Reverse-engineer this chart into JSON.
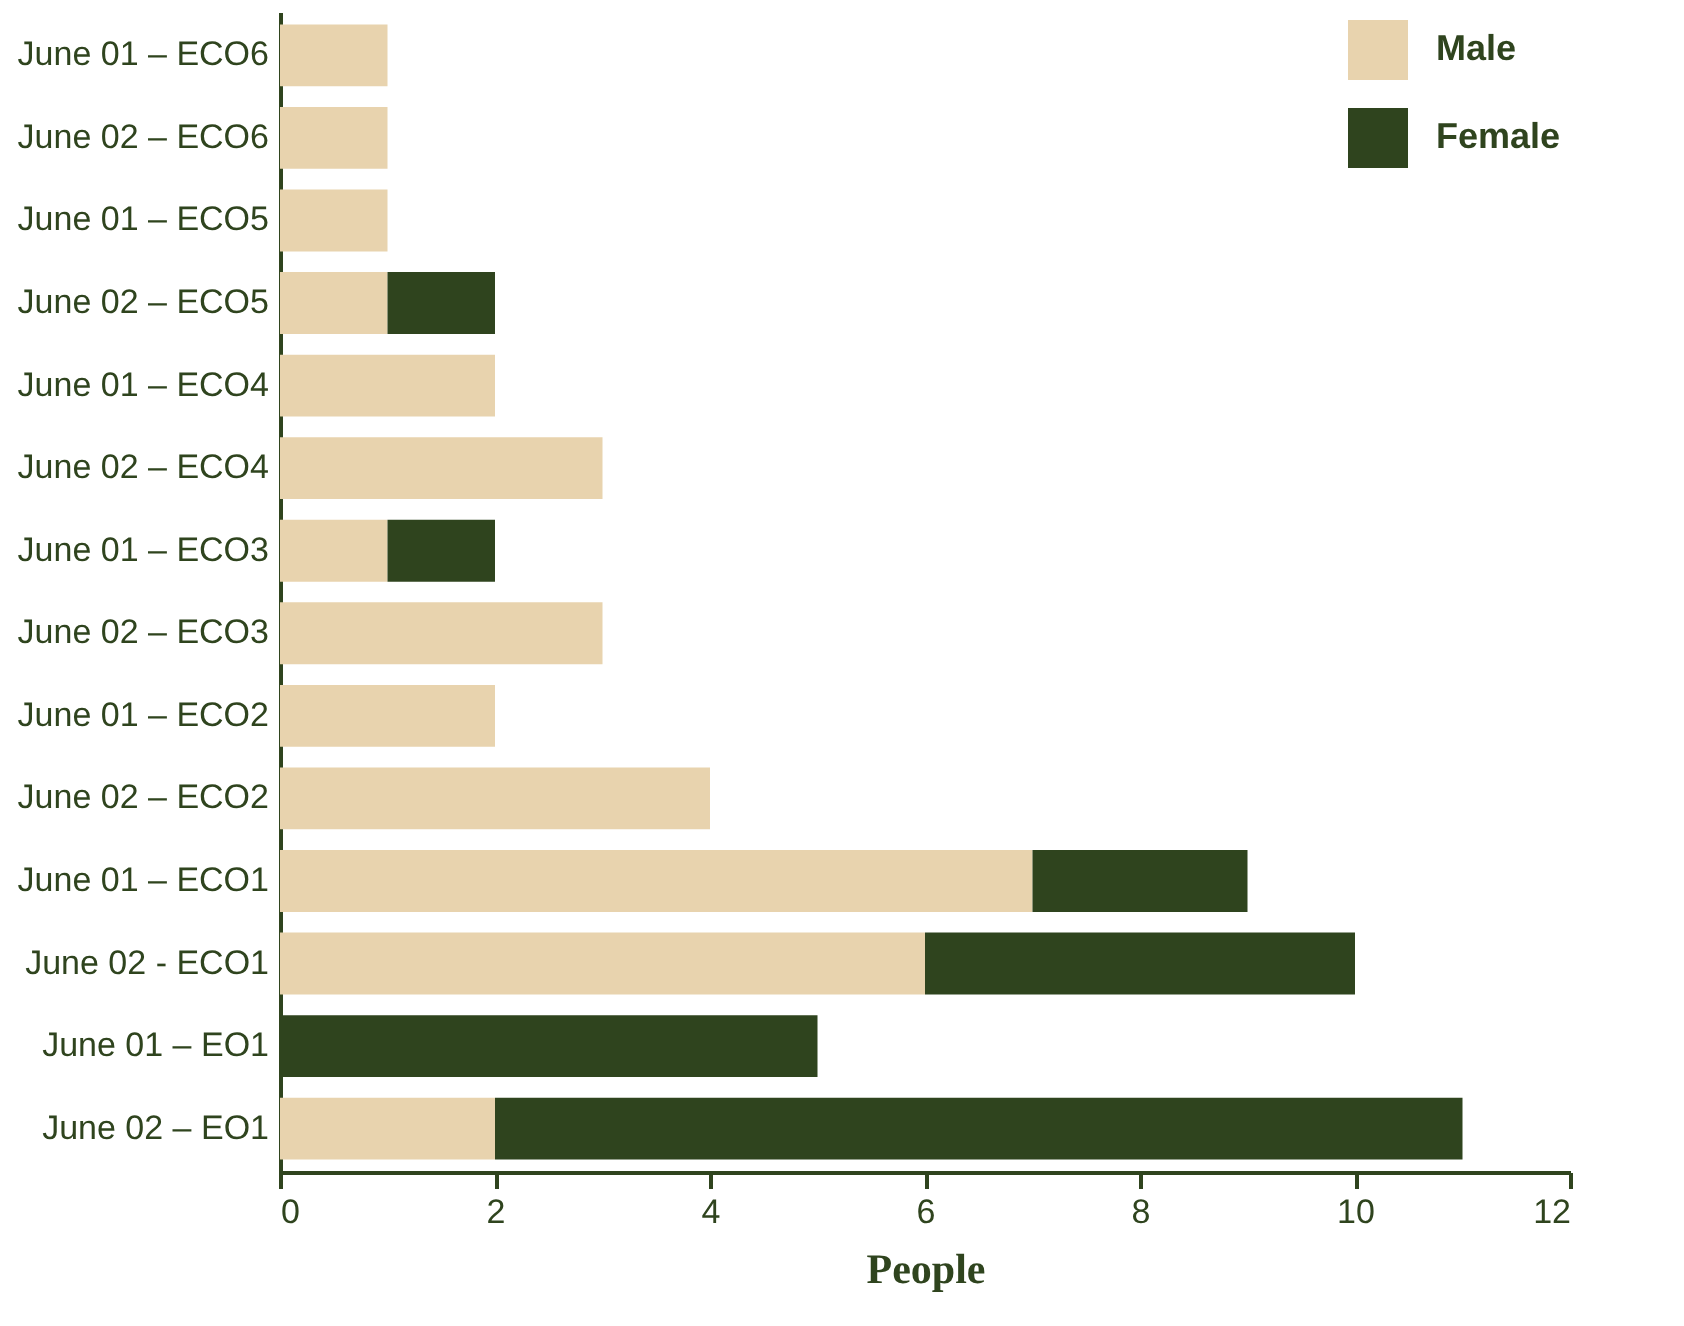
{
  "chart_data": {
    "type": "bar",
    "orientation": "horizontal",
    "stacked": true,
    "categories": [
      "June 01 – ECO6",
      "June 02 – ECO6",
      "June 01 – ECO5",
      "June 02 – ECO5",
      "June 01 – ECO4",
      "June 02 – ECO4",
      "June 01 – ECO3",
      "June 02 – ECO3",
      "June 01 – ECO2",
      "June 02 – ECO2",
      "June 01 – ECO1",
      "June 02 - ECO1",
      "June 01 – EO1",
      "June 02 – EO1"
    ],
    "series": [
      {
        "name": "Male",
        "color": "#e8d3ae",
        "values": [
          1,
          1,
          1,
          1,
          2,
          3,
          1,
          3,
          2,
          4,
          7,
          6,
          0,
          2
        ]
      },
      {
        "name": "Female",
        "color": "#2f441e",
        "values": [
          0,
          0,
          0,
          1,
          0,
          0,
          1,
          0,
          0,
          0,
          2,
          4,
          5,
          9
        ]
      }
    ],
    "xlabel": "People",
    "xlim": [
      0,
      12
    ],
    "xticks": [
      0,
      2,
      4,
      6,
      8,
      10,
      12
    ],
    "grid": false,
    "legend": "top right"
  }
}
